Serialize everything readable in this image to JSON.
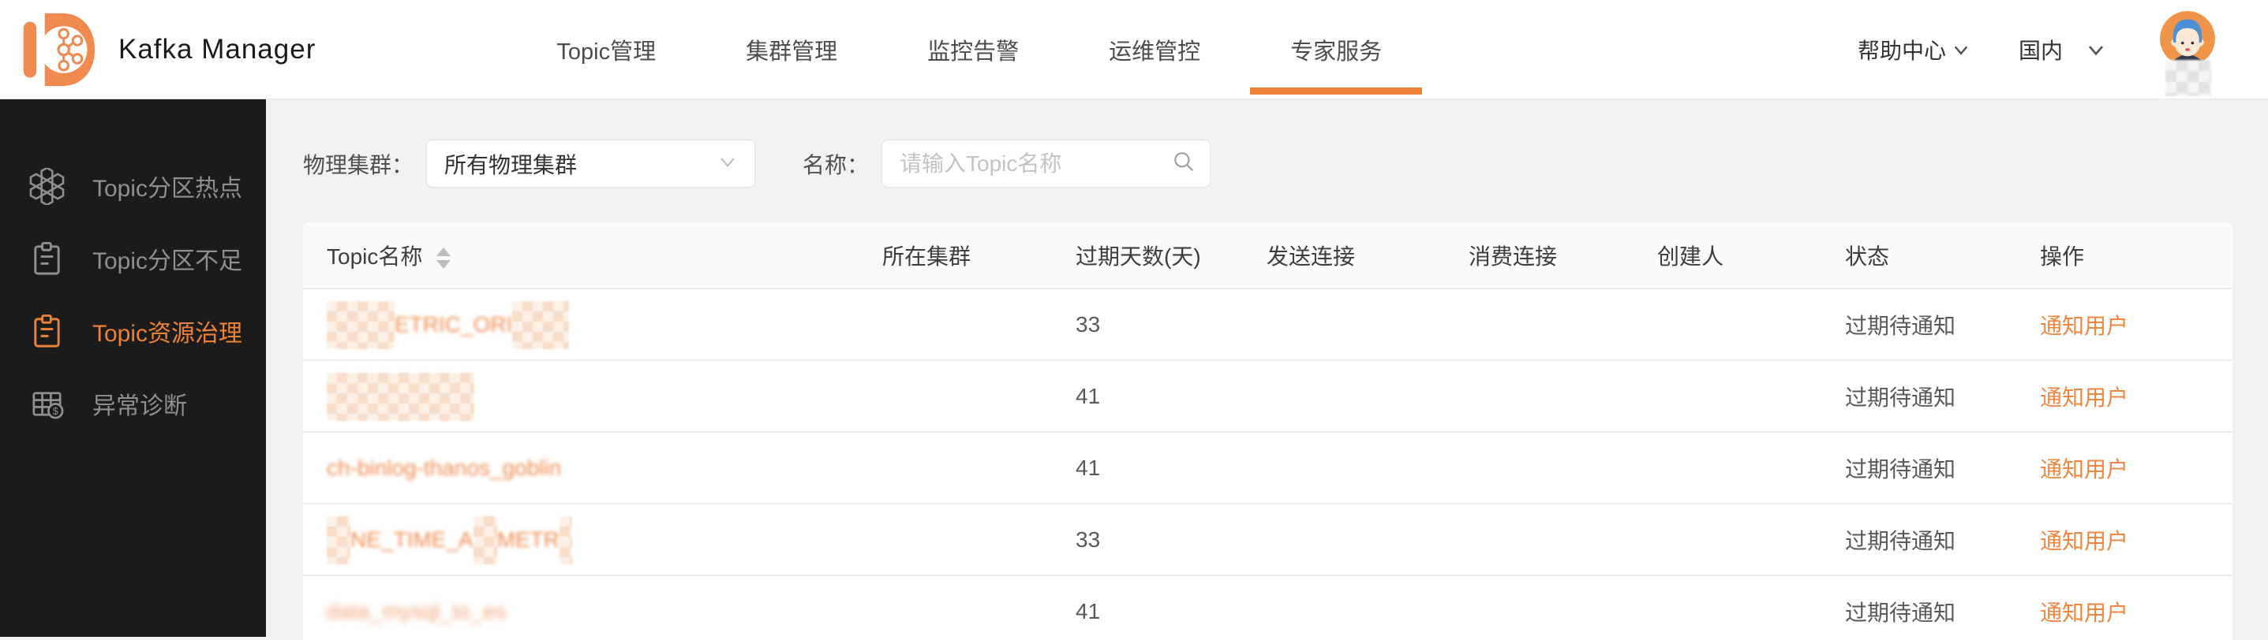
{
  "colors": {
    "accent_orange": "#ED8135",
    "sidebar_bg": "#1B1B1B",
    "link_orange": "#F0863F",
    "blur_orange": "#EE8A4D"
  },
  "brand": {
    "title": "Kafka Manager",
    "logo_icon": "kafka-molecule-d-logo"
  },
  "navbar": {
    "items": [
      {
        "label": "Topic管理",
        "active": false
      },
      {
        "label": "集群管理",
        "active": false
      },
      {
        "label": "监控告警",
        "active": false
      },
      {
        "label": "运维管控",
        "active": false
      },
      {
        "label": "专家服务",
        "active": true
      }
    ],
    "help": {
      "label": "帮助中心"
    },
    "region": {
      "label": "国内"
    }
  },
  "sidebar": {
    "items": [
      {
        "label": "Topic分区热点",
        "icon": "honeycomb-icon",
        "active": false
      },
      {
        "label": "Topic分区不足",
        "icon": "clipboard-icon",
        "active": false
      },
      {
        "label": "Topic资源治理",
        "icon": "clipboard-icon",
        "active": true
      },
      {
        "label": "异常诊断",
        "icon": "grid-coin-icon",
        "active": false
      }
    ]
  },
  "filters": {
    "cluster_label": "物理集群：",
    "cluster_value": "所有物理集群",
    "name_label": "名称：",
    "name_placeholder": "请输入Topic名称"
  },
  "table": {
    "columns": [
      {
        "label": "Topic名称",
        "sortable": true
      },
      {
        "label": "所在集群",
        "sortable": false
      },
      {
        "label": "过期天数(天)",
        "sortable": false
      },
      {
        "label": "发送连接",
        "sortable": false
      },
      {
        "label": "消费连接",
        "sortable": false
      },
      {
        "label": "创建人",
        "sortable": false
      },
      {
        "label": "状态",
        "sortable": false
      },
      {
        "label": "操作",
        "sortable": false
      }
    ],
    "rows": [
      {
        "name_segments": [
          {
            "text": "xxxxxx",
            "style": "censored"
          },
          {
            "text": "ETRIC_ORI",
            "style": "faint"
          },
          {
            "text": "xxxxx",
            "style": "censored"
          }
        ],
        "cluster": "",
        "days": "33",
        "send_conn": "",
        "consume_conn": "",
        "creator": "",
        "status": "过期待通知",
        "action": "通知用户"
      },
      {
        "name_segments": [
          {
            "text": "xxxx_xxxx_xxx",
            "style": "censored"
          }
        ],
        "cluster": "",
        "days": "41",
        "send_conn": "",
        "consume_conn": "",
        "creator": "",
        "status": "过期待通知",
        "action": "通知用户"
      },
      {
        "name_segments": [
          {
            "text": "ch-binlog-thanos_goblin",
            "style": "faint"
          }
        ],
        "cluster": "",
        "days": "41",
        "send_conn": "",
        "consume_conn": "",
        "creator": "",
        "status": "过期待通知",
        "action": "通知用户"
      },
      {
        "name_segments": [
          {
            "text": "xx",
            "style": "censored"
          },
          {
            "text": "NE_TIME_A",
            "style": "faint"
          },
          {
            "text": "xx",
            "style": "censored"
          },
          {
            "text": "METR",
            "style": "faint"
          },
          {
            "text": "x",
            "style": "censored"
          }
        ],
        "cluster": "",
        "days": "33",
        "send_conn": "",
        "consume_conn": "",
        "creator": "",
        "status": "过期待通知",
        "action": "通知用户"
      },
      {
        "name_segments": [
          {
            "text": "data_mysql_to_es",
            "style": "faint2"
          }
        ],
        "cluster": "",
        "days": "41",
        "send_conn": "",
        "consume_conn": "",
        "creator": "",
        "status": "过期待通知",
        "action": "通知用户"
      }
    ]
  }
}
